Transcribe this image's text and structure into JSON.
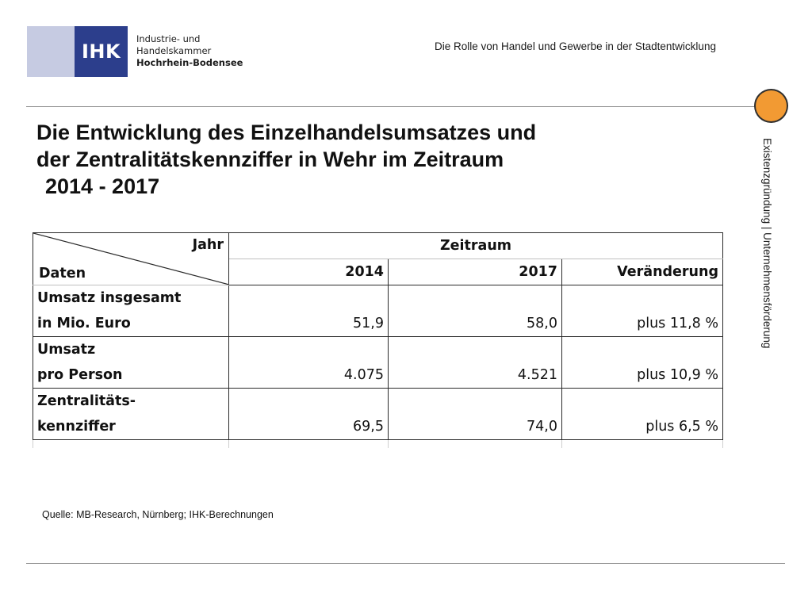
{
  "header": {
    "logo_mark": "IHK",
    "logo_line1": "Industrie- und Handelskammer",
    "logo_line2": "Hochrhein-Bodensee",
    "caption": "Die Rolle von Handel und Gewerbe in der Stadtentwicklung",
    "side_label": "Existenzgründung | Unternehmensförderung"
  },
  "colors": {
    "logo_dark": "#2c3e8c",
    "logo_light": "#c6cbe2",
    "accent_dot": "#f29a33"
  },
  "title": {
    "line1": "Die Entwicklung des Einzelhandelsumsatzes und",
    "line2": "der Zentralitätskennziffer in Wehr im Zeitraum",
    "line3": "2014 - 2017"
  },
  "table": {
    "corner_top": "Jahr",
    "corner_bottom": "Daten",
    "group_header": "Zeitraum",
    "columns": [
      "2014",
      "2017",
      "Veränderung"
    ],
    "rows": [
      {
        "label_line1": "Umsatz insgesamt",
        "label_line2": "in Mio. Euro",
        "v2014": "51,9",
        "v2017": "58,0",
        "change": "plus 11,8 %"
      },
      {
        "label_line1": "Umsatz",
        "label_line2": "pro Person",
        "v2014": "4.075",
        "v2017": "4.521",
        "change": "plus 10,9 %"
      },
      {
        "label_line1": "Zentralitäts-",
        "label_line2": "kennziffer",
        "v2014": "69,5",
        "v2017": "74,0",
        "change": "plus 6,5 %"
      }
    ]
  },
  "chart_data": {
    "type": "table",
    "title": "Die Entwicklung des Einzelhandelsumsatzes und der Zentralitätskennziffer in Wehr im Zeitraum 2014 - 2017",
    "columns": [
      "Daten",
      "2014",
      "2017",
      "Veränderung"
    ],
    "rows": [
      [
        "Umsatz insgesamt in Mio. Euro",
        51.9,
        58.0,
        "plus 11,8 %"
      ],
      [
        "Umsatz pro Person",
        4075,
        4521,
        "plus 10,9 %"
      ],
      [
        "Zentralitätskennziffer",
        69.5,
        74.0,
        "plus 6,5 %"
      ]
    ]
  },
  "footer": {
    "source": "Quelle: MB-Research, Nürnberg; IHK-Berechnungen"
  }
}
